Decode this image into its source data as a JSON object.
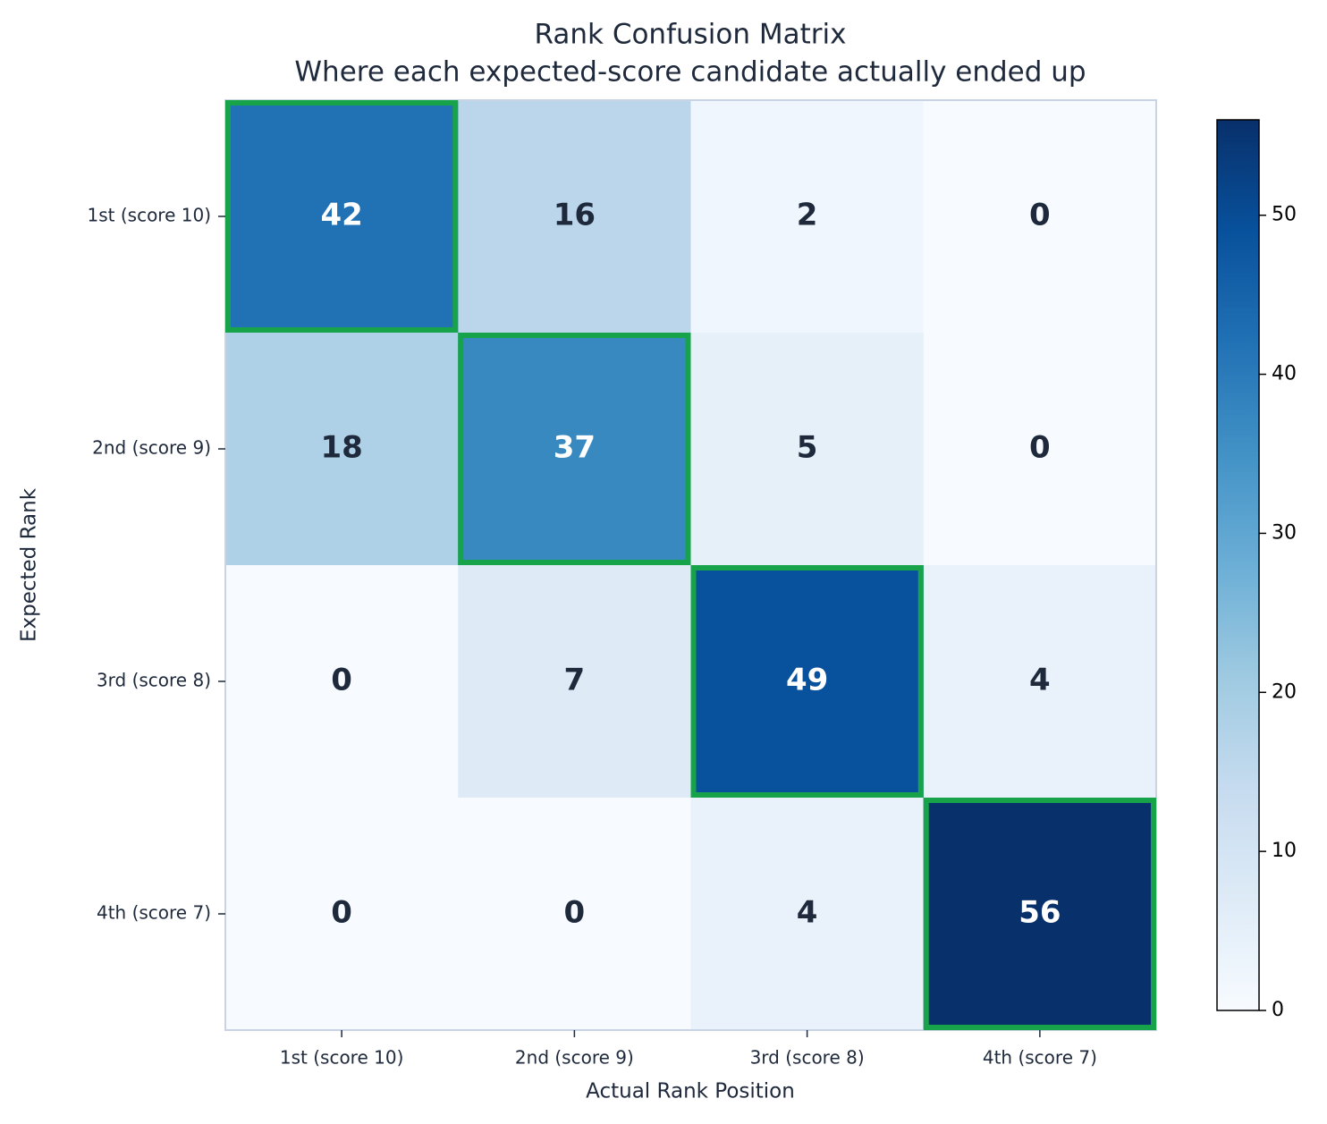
{
  "chart_data": {
    "type": "heatmap",
    "title": "Rank Confusion Matrix",
    "subtitle": "Where each expected-score candidate actually ended up",
    "xlabel": "Actual Rank Position",
    "ylabel": "Expected Rank",
    "x_categories": [
      "1st (score 10)",
      "2nd (score 9)",
      "3rd (score 8)",
      "4th (score 7)"
    ],
    "y_categories": [
      "1st (score 10)",
      "2nd (score 9)",
      "3rd (score 8)",
      "4th (score 7)"
    ],
    "values": [
      [
        42,
        16,
        2,
        0
      ],
      [
        18,
        37,
        5,
        0
      ],
      [
        0,
        7,
        49,
        4
      ],
      [
        0,
        0,
        4,
        56
      ]
    ],
    "clim": [
      0,
      56
    ],
    "cticks": [
      0,
      10,
      20,
      30,
      40,
      50
    ],
    "colormap": [
      "#f7fbff",
      "#deebf7",
      "#c6dbef",
      "#9ecae1",
      "#6baed6",
      "#4292c6",
      "#2171b5",
      "#08519c",
      "#08306b"
    ],
    "highlight_diagonal": true,
    "highlight_color": "#16a34a"
  }
}
